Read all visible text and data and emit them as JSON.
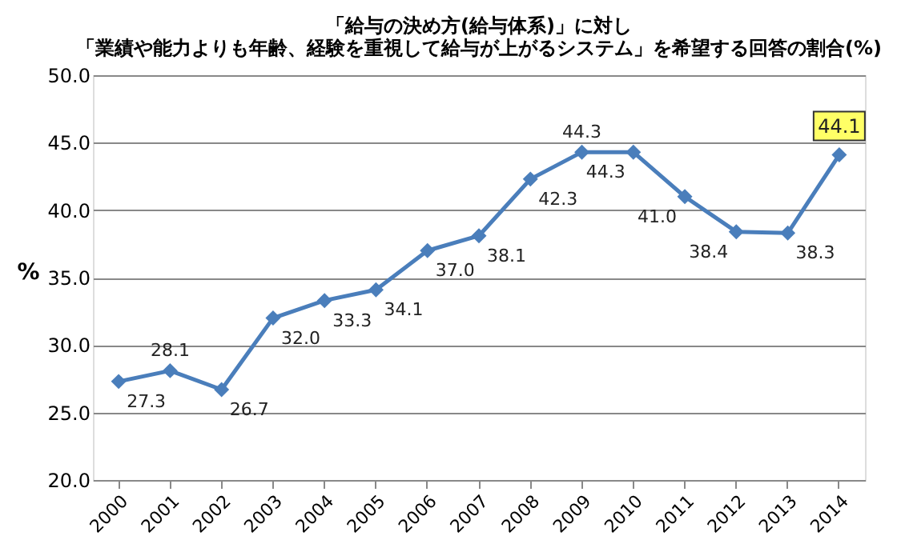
{
  "chart_data": {
    "type": "line",
    "title": [
      "「給与の決め方(給与体系)」に対し",
      "「業績や能力よりも年齢、経験を重視して給与が上がるシステム」を希望する回答の割合(%)"
    ],
    "ylabel": "%",
    "categories": [
      "2000",
      "2001",
      "2002",
      "2003",
      "2004",
      "2005",
      "2006",
      "2007",
      "2008",
      "2009",
      "2010",
      "2011",
      "2012",
      "2013",
      "2014"
    ],
    "series": [
      {
        "color": "#4a7ebb",
        "values": [
          27.3,
          28.1,
          26.7,
          32.0,
          33.3,
          34.1,
          37.0,
          38.1,
          42.3,
          44.3,
          44.3,
          41.0,
          38.4,
          38.3,
          44.1
        ],
        "value_labels": [
          "27.3",
          "28.1",
          "26.7",
          "32.0",
          "33.3",
          "34.1",
          "37.0",
          "38.1",
          "42.3",
          "44.3",
          "44.3",
          "41.0",
          "38.4",
          "38.3",
          null
        ]
      }
    ],
    "annotations": [
      {
        "text": "44.1",
        "x": "2014",
        "y": 44.1
      }
    ],
    "ylim": [
      20,
      50
    ],
    "yticks": [
      {
        "value": 20,
        "label": "20.0"
      },
      {
        "value": 25,
        "label": "25.0"
      },
      {
        "value": 30,
        "label": "30.0"
      },
      {
        "value": 35,
        "label": "35.0"
      },
      {
        "value": 40,
        "label": "40.0"
      },
      {
        "value": 45,
        "label": "45.0"
      },
      {
        "value": 50,
        "label": "50.0"
      }
    ],
    "grid": "y",
    "marker": "diamond",
    "line_style": "solid"
  }
}
